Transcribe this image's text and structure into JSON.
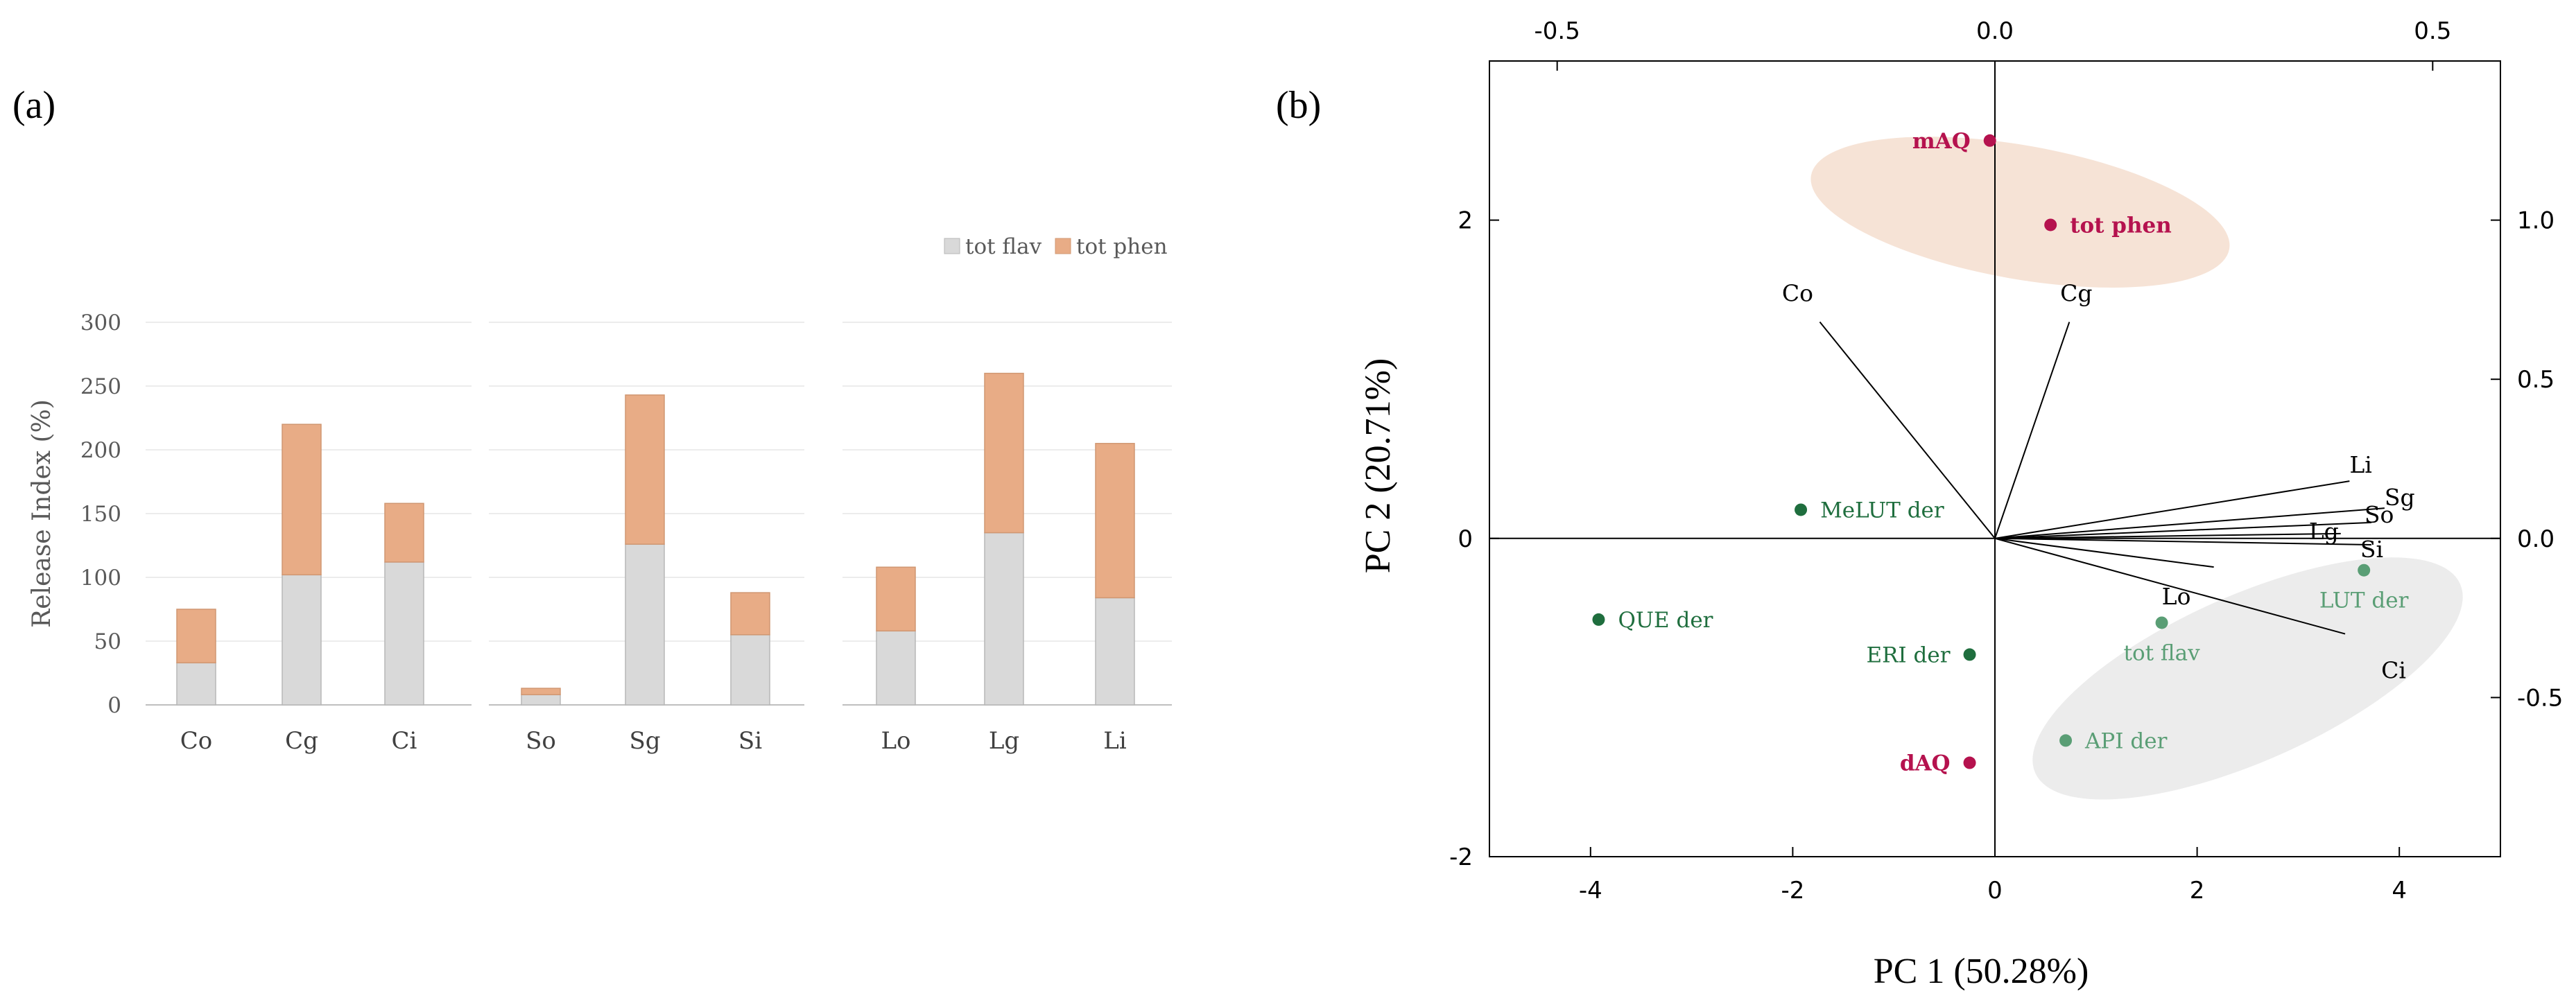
{
  "panels": {
    "a": {
      "label": "(a)"
    },
    "b": {
      "label": "(b)"
    }
  },
  "colors": {
    "flav": "#d9d9d9",
    "phen": "#e8ac86",
    "pt_red": "#b5124e",
    "pt_darkgreen": "#1f6e3e",
    "pt_lightgreen": "#5a9e75",
    "ellipse_orange": "#f6e3d6",
    "ellipse_grey": "#ececec"
  },
  "chart_data": [
    {
      "type": "bar",
      "stacked": true,
      "title": "",
      "ylabel": "Release Index (%)",
      "xlabel": "",
      "ylim": [
        0,
        300
      ],
      "yticks": [
        0,
        50,
        100,
        150,
        200,
        250,
        300
      ],
      "grid": true,
      "legend_position": "top-right",
      "groups": [
        {
          "categories": [
            "Co",
            "Cg",
            "Ci"
          ]
        },
        {
          "categories": [
            "So",
            "Sg",
            "Si"
          ]
        },
        {
          "categories": [
            "Lo",
            "Lg",
            "Li"
          ]
        }
      ],
      "categories": [
        "Co",
        "Cg",
        "Ci",
        "So",
        "Sg",
        "Si",
        "Lo",
        "Lg",
        "Li"
      ],
      "series": [
        {
          "name": "tot flav",
          "values": [
            33,
            102,
            112,
            8,
            126,
            55,
            58,
            135,
            84
          ]
        },
        {
          "name": "tot phen",
          "values": [
            42,
            118,
            46,
            5,
            117,
            33,
            50,
            125,
            121
          ]
        }
      ]
    },
    {
      "type": "scatter",
      "title": "",
      "xlabel": "PC 1 (50.28%)",
      "ylabel": "PC 2 (20.71%)",
      "xlim": [
        -5,
        5
      ],
      "ylim": [
        -2,
        3
      ],
      "xticks": [
        -4,
        -2,
        0,
        2,
        4
      ],
      "yticks": [
        -2,
        0,
        2
      ],
      "top_xlim": [
        -0.5,
        0.5
      ],
      "top_xticks": [
        "-0.5",
        "0.0",
        "0.5"
      ],
      "right_ylim": [
        -0.5,
        1.0
      ],
      "right_yticks": [
        "-0.5",
        "0.0",
        "0.5",
        "1.0"
      ],
      "ellipses": [
        {
          "color": "orange",
          "cx": 0.25,
          "cy": 2.05,
          "rx": 2.1,
          "ry": 0.42,
          "angle_deg": 10
        },
        {
          "color": "grey",
          "cx": 2.5,
          "cy": -0.88,
          "rx": 2.3,
          "ry": 0.52,
          "angle_deg": -24
        }
      ],
      "points": [
        {
          "label": "mAQ",
          "x": -0.05,
          "y": 2.5,
          "color": "red",
          "label_side": "left"
        },
        {
          "label": "tot phen",
          "x": 0.55,
          "y": 1.97,
          "color": "red",
          "label_side": "right"
        },
        {
          "label": "MeLUT der",
          "x": -1.92,
          "y": 0.18,
          "color": "darkgreen",
          "label_side": "right"
        },
        {
          "label": "QUE der",
          "x": -3.92,
          "y": -0.51,
          "color": "darkgreen",
          "label_side": "right"
        },
        {
          "label": "ERI der",
          "x": -0.25,
          "y": -0.73,
          "color": "darkgreen",
          "label_side": "left"
        },
        {
          "label": "dAQ",
          "x": -0.25,
          "y": -1.41,
          "color": "red",
          "label_side": "left"
        },
        {
          "label": "tot flav",
          "x": 1.65,
          "y": -0.53,
          "color": "lightgreen",
          "label_side": "below"
        },
        {
          "label": "API der",
          "x": 0.7,
          "y": -1.27,
          "color": "lightgreen",
          "label_side": "right"
        },
        {
          "label": "LUT der",
          "x": 3.65,
          "y": -0.2,
          "color": "lightgreen",
          "label_side": "below"
        }
      ],
      "loadings": [
        {
          "label": "Co",
          "x": -0.2,
          "y": 0.68
        },
        {
          "label": "Cg",
          "x": 0.085,
          "y": 0.68
        },
        {
          "label": "Li",
          "x": 0.405,
          "y": 0.18
        },
        {
          "label": "Sg",
          "x": 0.445,
          "y": 0.095
        },
        {
          "label": "So",
          "x": 0.43,
          "y": 0.05
        },
        {
          "label": "Lg",
          "x": 0.395,
          "y": 0.015
        },
        {
          "label": "Si",
          "x": 0.43,
          "y": -0.02
        },
        {
          "label": "Lo",
          "x": 0.25,
          "y": -0.09
        },
        {
          "label": "Ci",
          "x": 0.4,
          "y": -0.3
        }
      ]
    }
  ]
}
